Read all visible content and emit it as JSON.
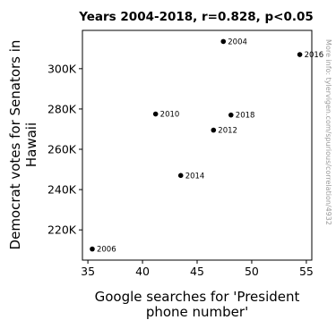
{
  "chart_data": {
    "type": "scatter",
    "title": "Years 2004-2018, r=0.828, p<0.05",
    "xlabel": [
      "Google searches for 'President",
      "phone number'"
    ],
    "ylabel": [
      "Democrat votes for Senators in",
      "Hawaii"
    ],
    "xlim": [
      34.5,
      55.5
    ],
    "ylim": [
      205000,
      319000
    ],
    "xticks": [
      35,
      40,
      45,
      50,
      55
    ],
    "xtick_labels": [
      "35",
      "40",
      "45",
      "50",
      "55"
    ],
    "yticks": [
      220000,
      240000,
      260000,
      280000,
      300000
    ],
    "ytick_labels": [
      "220K",
      "240K",
      "260K",
      "280K",
      "300K"
    ],
    "grid": false,
    "points": [
      {
        "x": 47.4,
        "y": 313500,
        "label": "2004"
      },
      {
        "x": 35.4,
        "y": 210500,
        "label": "2006"
      },
      {
        "x": 41.2,
        "y": 277500,
        "label": "2010"
      },
      {
        "x": 46.5,
        "y": 269500,
        "label": "2012"
      },
      {
        "x": 43.5,
        "y": 247000,
        "label": "2014"
      },
      {
        "x": 54.4,
        "y": 307000,
        "label": "2016"
      },
      {
        "x": 48.1,
        "y": 277000,
        "label": "2018"
      }
    ],
    "point_color": "#000000",
    "side_note": "More info: tylervigen.com/spurious/correlation/4932"
  }
}
